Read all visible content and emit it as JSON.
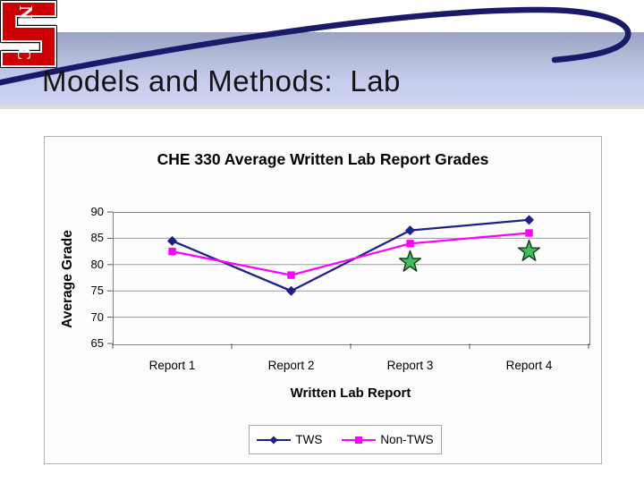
{
  "slide": {
    "title": "Models and Methods:  Lab"
  },
  "logo": {
    "letter_s": "S",
    "letter_n": "N",
    "letter_c": "C",
    "red": "#cc0000"
  },
  "colors": {
    "swoosh_navy": "#1a1a6b",
    "header_band_top": "#9aa2c2",
    "header_band_bottom": "#ced4f2",
    "header_band_edge": "#d8e0d6",
    "plot_background": "#c6c6c6",
    "gridline": "#9c9c9c",
    "tws_navy": "#1f1f8b",
    "non_tws_magenta": "#ff00ff",
    "star_green": "#3fbe5f"
  },
  "chart_data": {
    "type": "line",
    "title": "CHE 330 Average Written Lab Report Grades",
    "xlabel": "Written Lab Report",
    "ylabel": "Average Grade",
    "categories": [
      "Report 1",
      "Report 2",
      "Report 3",
      "Report 4"
    ],
    "series": [
      {
        "name": "TWS",
        "color": "#1f1f8b",
        "marker": "diamond",
        "values": [
          84.5,
          75,
          86.5,
          88.5
        ]
      },
      {
        "name": "Non-TWS",
        "color": "#ff00ff",
        "marker": "square",
        "values": [
          82.5,
          78,
          84,
          86
        ]
      }
    ],
    "annotations": [
      {
        "type": "star",
        "category": "Report 3",
        "category_index": 2,
        "value": 80.5,
        "color": "#3fbe5f"
      },
      {
        "type": "star",
        "category": "Report 4",
        "category_index": 3,
        "value": 82.5,
        "color": "#3fbe5f"
      }
    ],
    "ylim": [
      65,
      90
    ],
    "yticks": [
      65,
      70,
      75,
      80,
      85,
      90
    ],
    "grid": true,
    "legend_position": "bottom",
    "legend_entries": [
      "TWS",
      "Non-TWS"
    ],
    "plot_bg": "#c6c6c6"
  }
}
